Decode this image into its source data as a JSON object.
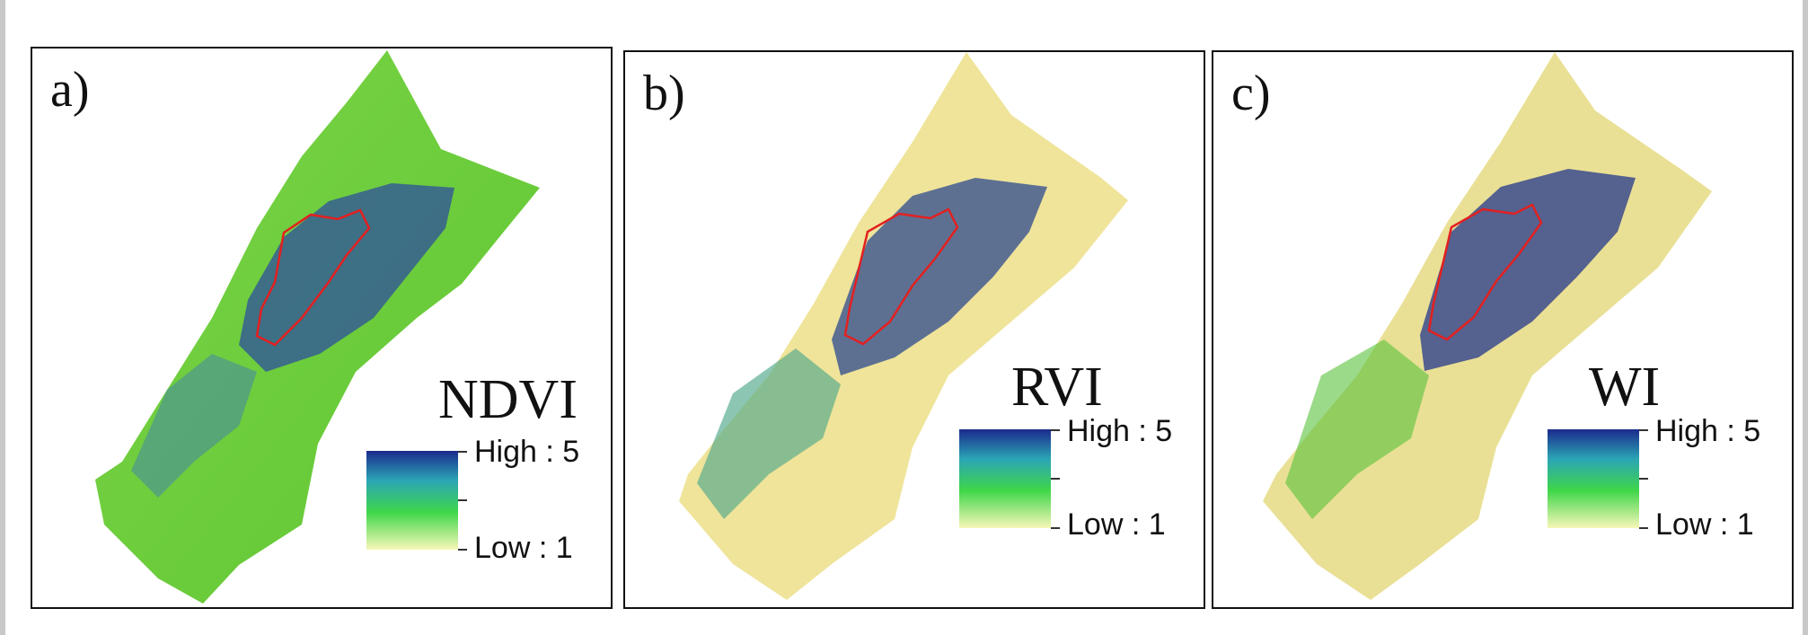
{
  "figure": {
    "panels": [
      {
        "label": "a)",
        "index": "NDVI",
        "legend": {
          "high": "High : 5",
          "low": "Low : 1"
        },
        "colors": {
          "base": "#6ccf3a",
          "dark": "#2e4f9e",
          "mid": "#3fa58a",
          "pale": "#e8f0a0"
        }
      },
      {
        "label": "b)",
        "index": "RVI",
        "legend": {
          "high": "High : 5",
          "low": "Low : 1"
        },
        "colors": {
          "base": "#efe49a",
          "dark": "#1f3f8f",
          "mid": "#4fa88a",
          "pale": "#f2eab2"
        }
      },
      {
        "label": "c)",
        "index": "WI",
        "legend": {
          "high": "High : 5",
          "low": "Low : 1"
        },
        "colors": {
          "base": "#e9e096",
          "dark": "#1c2f8a",
          "mid": "#58c23a",
          "pale": "#f3ecb4"
        }
      }
    ],
    "legend_ramp": [
      "#1b2a8c",
      "#2aa5b5",
      "#3fd64a",
      "#f7f7b8"
    ],
    "outline_color": "#e32020",
    "map_layers": [
      "study-area-mask",
      "classified-index-raster",
      "boundary-outline"
    ]
  }
}
